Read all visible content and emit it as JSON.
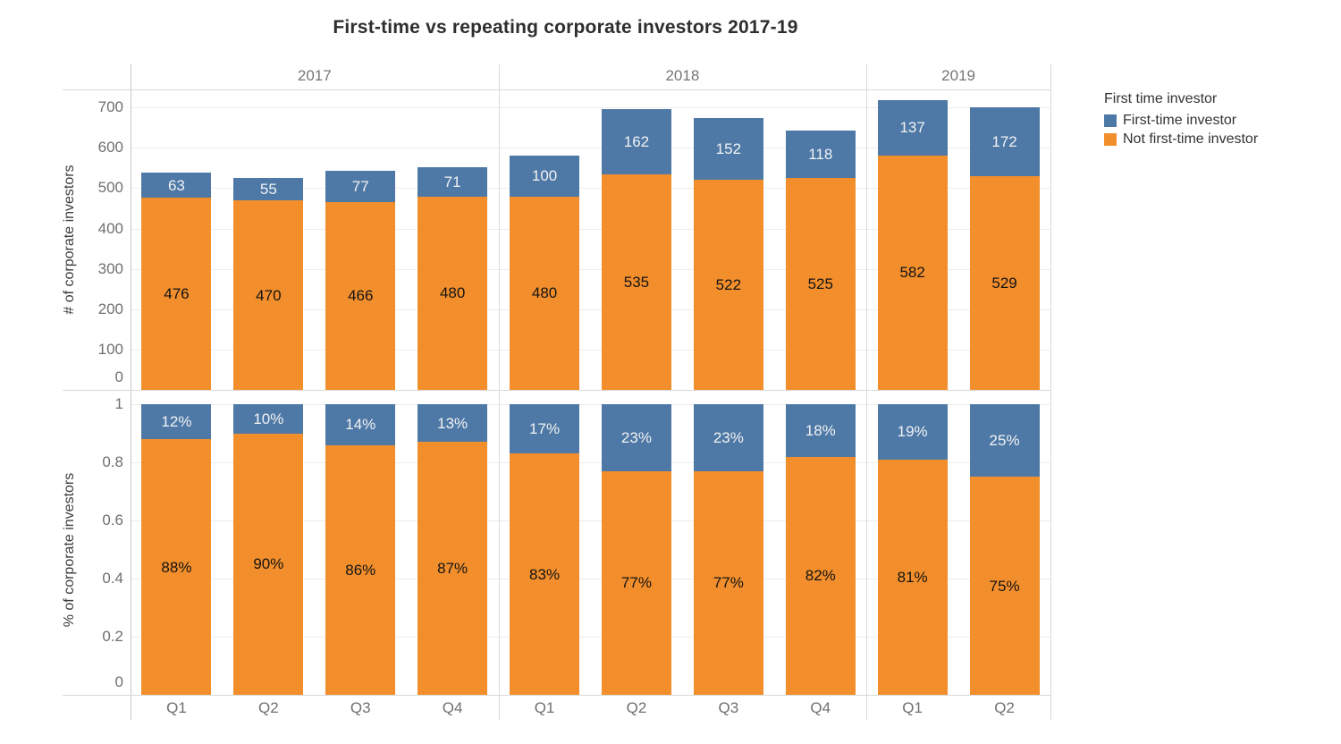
{
  "chart_data": {
    "type": "bar",
    "stacked": true,
    "title": "First-time vs repeating corporate investors 2017-19",
    "legend": {
      "title": "First time investor",
      "items": [
        {
          "key": "first_time",
          "label": "First-time investor",
          "color": "#4e79a7"
        },
        {
          "key": "not_first_time",
          "label": "Not first-time investor",
          "color": "#f28e2b"
        }
      ]
    },
    "colors": {
      "first_time": "#4e79a7",
      "not_first_time": "#f28e2b"
    },
    "grid": true,
    "legend_position": "right",
    "facets": [
      {
        "label": "2017",
        "categories": [
          "Q1",
          "Q2",
          "Q3",
          "Q4"
        ],
        "counts": {
          "first_time": [
            63,
            55,
            77,
            71
          ],
          "not_first_time": [
            476,
            470,
            466,
            480
          ]
        },
        "percents": {
          "first_time": [
            12,
            10,
            14,
            13
          ],
          "not_first_time": [
            88,
            90,
            86,
            87
          ]
        }
      },
      {
        "label": "2018",
        "categories": [
          "Q1",
          "Q2",
          "Q3",
          "Q4"
        ],
        "counts": {
          "first_time": [
            100,
            162,
            152,
            118
          ],
          "not_first_time": [
            480,
            535,
            522,
            525
          ]
        },
        "percents": {
          "first_time": [
            17,
            23,
            23,
            18
          ],
          "not_first_time": [
            83,
            77,
            77,
            82
          ]
        }
      },
      {
        "label": "2019",
        "categories": [
          "Q1",
          "Q2"
        ],
        "counts": {
          "first_time": [
            137,
            172
          ],
          "not_first_time": [
            582,
            529
          ]
        },
        "percents": {
          "first_time": [
            19,
            25
          ],
          "not_first_time": [
            81,
            75
          ]
        }
      }
    ],
    "panels": [
      {
        "id": "counts",
        "ylabel": "# of corporate investors",
        "value_key": "counts",
        "tick_labels": [
          "0",
          "100",
          "200",
          "300",
          "400",
          "500",
          "600",
          "700"
        ],
        "tick_values": [
          0,
          100,
          200,
          300,
          400,
          500,
          600,
          700
        ],
        "ymax": 745,
        "label_suffix": ""
      },
      {
        "id": "percents",
        "ylabel": "% of corporate investors",
        "value_key": "percents",
        "tick_labels": [
          "0",
          "0.2",
          "0.4",
          "0.6",
          "0.8",
          "1"
        ],
        "tick_values": [
          0,
          20,
          40,
          60,
          80,
          100
        ],
        "ymax": 100,
        "label_suffix": "%"
      }
    ]
  }
}
